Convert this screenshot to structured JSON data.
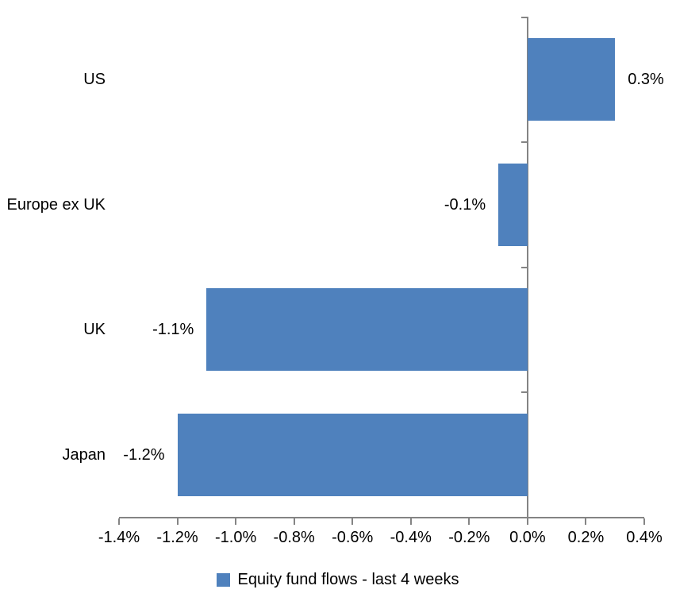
{
  "chart_data": {
    "type": "bar",
    "orientation": "horizontal",
    "title": "",
    "xlabel": "",
    "ylabel": "",
    "grid": false,
    "legend_position": "bottom",
    "categories": [
      "US",
      "Europe ex UK",
      "UK",
      "Japan"
    ],
    "series": [
      {
        "name": "Equity fund flows - last 4 weeks",
        "values": [
          0.3,
          -0.1,
          -1.1,
          -1.2
        ],
        "value_labels": [
          "0.3%",
          "-0.1%",
          "-1.1%",
          "-1.2%"
        ]
      }
    ],
    "xlim": [
      -1.4,
      0.4
    ],
    "x_ticks": [
      {
        "value": -1.4,
        "label": "-1.4%"
      },
      {
        "value": -1.2,
        "label": "-1.2%"
      },
      {
        "value": -1.0,
        "label": "-1.0%"
      },
      {
        "value": -0.8,
        "label": "-0.8%"
      },
      {
        "value": -0.6,
        "label": "-0.6%"
      },
      {
        "value": -0.4,
        "label": "-0.4%"
      },
      {
        "value": -0.2,
        "label": "-0.2%"
      },
      {
        "value": 0.0,
        "label": "0.0%"
      },
      {
        "value": 0.2,
        "label": "0.2%"
      },
      {
        "value": 0.4,
        "label": "0.4%"
      }
    ],
    "colors": {
      "bar": "#4F81BD",
      "axis": "#848484",
      "text": "#000000",
      "background": "#FFFFFF"
    }
  }
}
